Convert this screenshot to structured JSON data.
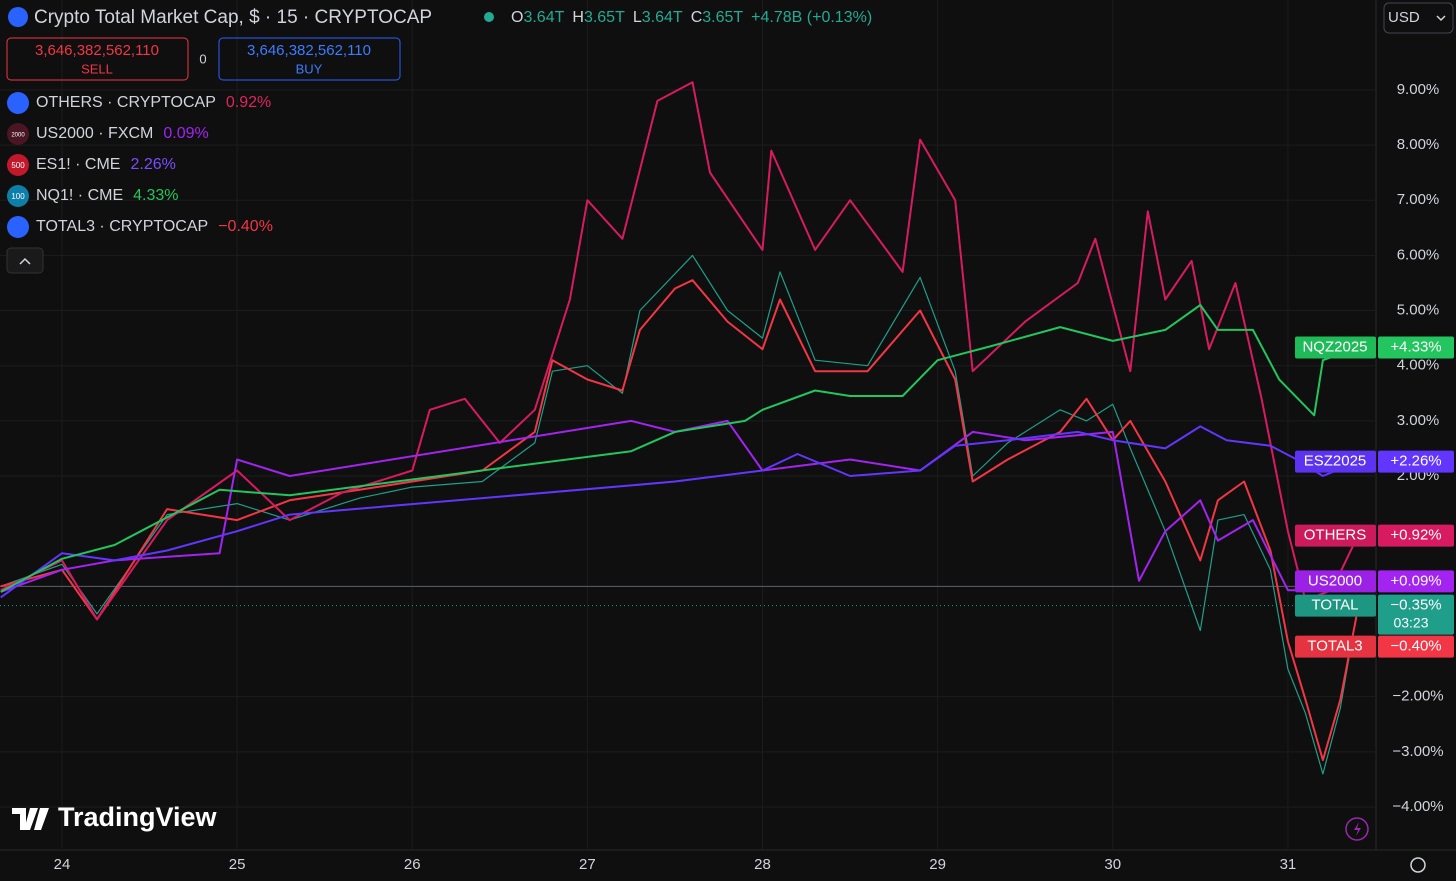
{
  "header": {
    "title": "Crypto Total Market Cap, $ · 15 · CRYPTOCAP",
    "ohlc": [
      {
        "label": "O",
        "value": "3.64T"
      },
      {
        "label": "H",
        "value": "3.65T"
      },
      {
        "label": "L",
        "value": "3.64T"
      },
      {
        "label": "C",
        "value": "3.65T"
      }
    ],
    "change": "+4.78B (+0.13%)",
    "currency": "USD"
  },
  "order": {
    "sell_price": "3,646,382,562,110",
    "sell": "SELL",
    "spread": "0",
    "buy_price": "3,646,382,562,110",
    "buy": "BUY"
  },
  "legend": [
    {
      "symbol": "OTHERS · CRYPTOCAP",
      "change": "0.92%",
      "color": "#e0245e",
      "icon_color": "#2962ff"
    },
    {
      "symbol": "US2000 · FXCM",
      "icon": "2000",
      "change": "0.09%",
      "color": "#a323f0",
      "icon_color": "#4a1626"
    },
    {
      "symbol": "ES1! · CME",
      "icon": "500",
      "change": "2.26%",
      "color": "#7c4dff",
      "icon_color": "#c2182b"
    },
    {
      "symbol": "NQ1! · CME",
      "icon": "100",
      "change": "4.33%",
      "color": "#22c55e",
      "icon_color": "#0e7fa8"
    },
    {
      "symbol": "TOTAL3 · CRYPTOCAP",
      "change": "−0.40%",
      "color": "#f23645",
      "icon_color": "#2962ff"
    }
  ],
  "watermark": "TradingView",
  "chart_data": {
    "type": "line",
    "xlim": [
      23.646,
      31.503
    ],
    "xticks": [
      24,
      25,
      26,
      27,
      28,
      29,
      30,
      31
    ],
    "ylim": [
      -4.78,
      10.63
    ],
    "yticks": [
      {
        "value": 9,
        "label": "9.00%"
      },
      {
        "value": 8,
        "label": "8.00%"
      },
      {
        "value": 7,
        "label": "7.00%"
      },
      {
        "value": 6,
        "label": "6.00%"
      },
      {
        "value": 5,
        "label": "5.00%"
      },
      {
        "value": 4,
        "label": "4.00%"
      },
      {
        "value": 3,
        "label": "3.00%"
      },
      {
        "value": 2,
        "label": "2.00%"
      },
      {
        "value": -2,
        "label": "−2.00%"
      },
      {
        "value": -3,
        "label": "−3.00%"
      },
      {
        "value": -4,
        "label": "−4.00%"
      }
    ],
    "grid": true,
    "series": [
      {
        "name": "TOTAL",
        "color": "#1f9e89",
        "width": 1.2,
        "countdown": "03:23",
        "last_value": -0.35,
        "last_label": "−0.35%",
        "x": [
          23.65,
          24.0,
          24.2,
          24.6,
          25.0,
          25.3,
          25.7,
          26.0,
          26.4,
          26.7,
          26.8,
          27.0,
          27.2,
          27.3,
          27.6,
          27.8,
          28.0,
          28.1,
          28.3,
          28.6,
          28.9,
          29.1,
          29.2,
          29.4,
          29.7,
          29.85,
          30.0,
          30.1,
          30.3,
          30.5,
          30.6,
          30.75,
          30.9,
          31.0,
          31.1,
          31.2,
          31.3,
          31.4
        ],
        "values": [
          0,
          0.4,
          -0.5,
          1.3,
          1.5,
          1.2,
          1.6,
          1.8,
          1.9,
          2.6,
          3.9,
          4.0,
          3.5,
          5.0,
          6.0,
          5.0,
          4.5,
          5.7,
          4.1,
          4.0,
          5.6,
          3.9,
          2.0,
          2.6,
          3.2,
          3.0,
          3.3,
          2.5,
          1.0,
          -0.8,
          1.2,
          1.3,
          0.3,
          -1.5,
          -2.3,
          -3.4,
          -2.2,
          -0.35
        ]
      },
      {
        "name": "TOTAL3",
        "color": "#f23645",
        "width": 2,
        "last_value": -0.4,
        "last_label": "−0.40%",
        "x": [
          23.65,
          24.0,
          24.2,
          24.6,
          25.0,
          25.3,
          25.7,
          26.0,
          26.4,
          26.7,
          26.8,
          27.0,
          27.2,
          27.3,
          27.5,
          27.6,
          27.8,
          28.0,
          28.1,
          28.3,
          28.6,
          28.9,
          29.1,
          29.2,
          29.4,
          29.7,
          29.85,
          30.0,
          30.1,
          30.3,
          30.5,
          30.6,
          30.75,
          30.9,
          31.0,
          31.1,
          31.2,
          31.3,
          31.4
        ],
        "values": [
          0,
          0.3,
          -0.6,
          1.4,
          1.2,
          1.56,
          1.75,
          1.9,
          2.1,
          2.8,
          4.1,
          3.75,
          3.55,
          4.65,
          5.4,
          5.55,
          4.8,
          4.3,
          5.2,
          3.9,
          3.9,
          5.0,
          3.75,
          1.9,
          2.3,
          2.8,
          3.4,
          2.65,
          3.0,
          1.9,
          0.47,
          1.56,
          1.9,
          0.65,
          -1.0,
          -2.05,
          -3.15,
          -2.05,
          -0.4
        ]
      },
      {
        "name": "OTHERS",
        "color": "#d81b60",
        "width": 2,
        "last_value": 0.92,
        "last_label": "+0.92%",
        "x": [
          23.65,
          24.0,
          24.2,
          24.6,
          25.0,
          25.3,
          25.6,
          26.0,
          26.1,
          26.3,
          26.5,
          26.7,
          26.9,
          27.0,
          27.2,
          27.4,
          27.6,
          27.7,
          28.0,
          28.05,
          28.3,
          28.5,
          28.8,
          28.9,
          29.1,
          29.2,
          29.5,
          29.8,
          29.9,
          30.1,
          30.2,
          30.3,
          30.45,
          30.55,
          30.7,
          30.85,
          31.0,
          31.1,
          31.25,
          31.4
        ],
        "values": [
          -0.07,
          0.47,
          -0.6,
          1.2,
          2.1,
          1.2,
          1.7,
          2.1,
          3.2,
          3.4,
          2.6,
          3.2,
          5.2,
          7.0,
          6.3,
          8.8,
          9.14,
          7.5,
          6.1,
          7.9,
          6.1,
          7.0,
          5.7,
          8.1,
          7.0,
          3.9,
          4.8,
          5.5,
          6.3,
          3.9,
          6.8,
          5.2,
          5.9,
          4.3,
          5.5,
          3.4,
          1.0,
          -0.25,
          -0.07,
          0.92
        ]
      },
      {
        "name": "US2000",
        "color": "#a323f0",
        "width": 2,
        "last_value": 0.09,
        "last_label": "+0.09%",
        "x": [
          23.65,
          24.0,
          24.3,
          24.9,
          25.0,
          25.3,
          27.25,
          27.5,
          27.8,
          28.0,
          28.5,
          28.9,
          29.2,
          29.5,
          30.0,
          30.15,
          30.3,
          30.5,
          30.6,
          30.8,
          31.0,
          31.2,
          31.4
        ],
        "values": [
          -0.1,
          0.3,
          0.47,
          0.6,
          2.3,
          2.0,
          3.0,
          2.8,
          3.0,
          2.1,
          2.3,
          2.1,
          2.8,
          2.65,
          2.8,
          0.1,
          1.0,
          1.56,
          0.83,
          1.2,
          -0.07,
          -0.07,
          0.09
        ]
      },
      {
        "name": "ESZ2025",
        "color": "#6236ff",
        "width": 2,
        "last_value": 2.26,
        "last_label": "+2.26%",
        "x": [
          23.65,
          24.0,
          24.3,
          24.6,
          25.0,
          25.3,
          27.25,
          27.5,
          28.0,
          28.2,
          28.5,
          28.9,
          29.1,
          29.4,
          29.8,
          30.0,
          30.3,
          30.5,
          30.65,
          30.9,
          31.05,
          31.2,
          31.4
        ],
        "values": [
          -0.2,
          0.6,
          0.47,
          0.65,
          1.0,
          1.3,
          1.83,
          1.9,
          2.1,
          2.4,
          2.0,
          2.1,
          2.55,
          2.65,
          2.8,
          2.65,
          2.5,
          2.9,
          2.65,
          2.55,
          2.3,
          2.0,
          2.26
        ]
      },
      {
        "name": "NQZ2025",
        "color": "#22c55e",
        "width": 2,
        "last_value": 4.33,
        "last_label": "+4.33%",
        "x": [
          23.65,
          24.0,
          24.3,
          24.9,
          25.3,
          27.25,
          27.5,
          27.9,
          28.0,
          28.3,
          28.5,
          28.8,
          29.0,
          29.3,
          29.7,
          30.0,
          30.3,
          30.5,
          30.6,
          30.8,
          30.95,
          31.15,
          31.2,
          31.4
        ],
        "values": [
          -0.1,
          0.5,
          0.75,
          1.75,
          1.65,
          2.45,
          2.8,
          3.0,
          3.2,
          3.55,
          3.45,
          3.45,
          4.1,
          4.35,
          4.7,
          4.45,
          4.65,
          5.1,
          4.65,
          4.65,
          3.75,
          3.1,
          4.1,
          4.33
        ]
      }
    ]
  }
}
